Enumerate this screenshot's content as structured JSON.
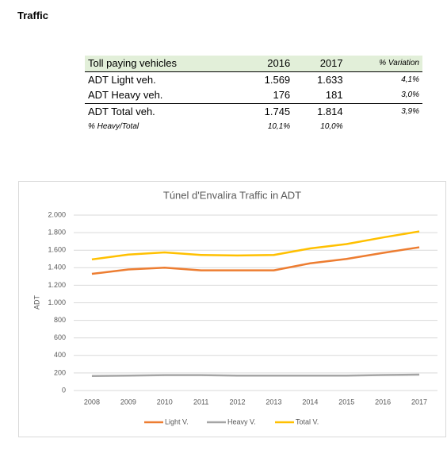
{
  "heading": "Traffic",
  "table": {
    "header": [
      "Toll paying vehicles",
      "2016",
      "2017",
      "% Variation"
    ],
    "rows": [
      [
        "ADT Light veh.",
        "1.569",
        "1.633",
        "4,1%"
      ],
      [
        "ADT Heavy veh.",
        "176",
        "181",
        "3,0%"
      ],
      [
        "ADT Total veh.",
        "1.745",
        "1.814",
        "3,9%"
      ],
      [
        "% Heavy/Total",
        "10,1%",
        "10,0%"
      ]
    ]
  },
  "chart_data": {
    "type": "line",
    "title": "Túnel d'Envalira Traffic in ADT",
    "y_label": "ADT",
    "categories": [
      "2008",
      "2009",
      "2010",
      "2011",
      "2012",
      "2013",
      "2014",
      "2015",
      "2016",
      "2017"
    ],
    "series": [
      {
        "name": "Light V.",
        "color": "#ed7d31",
        "values": [
          1330,
          1380,
          1400,
          1370,
          1370,
          1370,
          1450,
          1500,
          1569,
          1633
        ]
      },
      {
        "name": "Heavy V.",
        "color": "#a5a5a5",
        "values": [
          165,
          170,
          175,
          175,
          170,
          170,
          170,
          170,
          176,
          181
        ]
      },
      {
        "name": "Total V.",
        "color": "#ffc000",
        "values": [
          1495,
          1550,
          1575,
          1545,
          1540,
          1545,
          1620,
          1670,
          1745,
          1814
        ]
      }
    ],
    "ylim": [
      0,
      2000
    ],
    "yticks": [
      0,
      200,
      400,
      600,
      800,
      {
        "value": 1000,
        "label": "1.000"
      },
      {
        "value": 1200,
        "label": "1.200"
      },
      {
        "value": 1400,
        "label": "1.400"
      },
      {
        "value": 1600,
        "label": "1.600"
      },
      {
        "value": 1800,
        "label": "1.800"
      },
      {
        "value": 2000,
        "label": "2.000"
      }
    ],
    "grid": true,
    "legend": "bottom"
  }
}
